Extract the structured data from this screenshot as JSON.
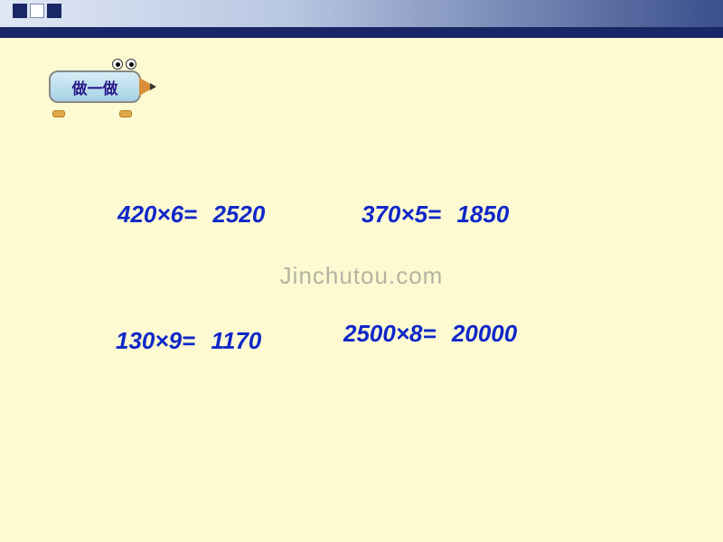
{
  "badge": {
    "label": "做一做"
  },
  "watermark": "Jinchutou.com",
  "equations": {
    "e1": {
      "expr": "420×6=",
      "ans": "2520"
    },
    "e2": {
      "expr": "370×5=",
      "ans": "1850"
    },
    "e3": {
      "expr": "130×9=",
      "ans": "1170"
    },
    "e4": {
      "expr": "2500×8=",
      "ans": "20000"
    }
  },
  "style": {
    "slide_bg": "#fdfad2",
    "topbar_dark": "#1a2766",
    "text_color": "#1027c8",
    "eq_fontsize": 26,
    "watermark_color": "rgba(120,120,120,0.55)"
  }
}
